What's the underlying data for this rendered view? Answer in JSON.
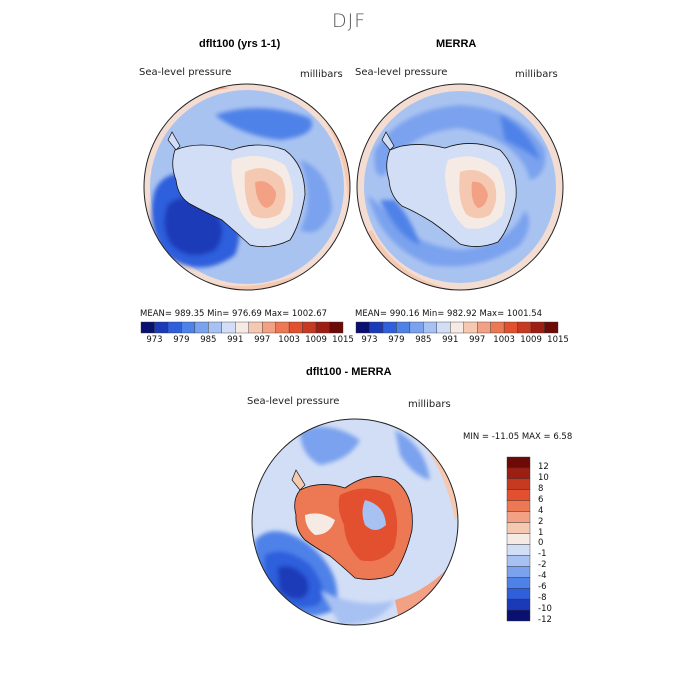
{
  "figure": {
    "season": "DJF",
    "units": "millibars",
    "variable": "Sea-level pressure"
  },
  "panels": [
    {
      "title": "dflt100 (yrs 1-1)",
      "variable": "Sea-level pressure",
      "units": "millibars",
      "stats": "MEAN= 989.35   Min= 976.69   Max= 1002.67"
    },
    {
      "title": "MERRA",
      "variable": "Sea-level pressure",
      "units": "millibars",
      "stats": "MEAN= 990.16   Min= 982.92   Max= 1001.54"
    },
    {
      "title": "dflt100 - MERRA",
      "variable": "Sea-level pressure",
      "units": "millibars",
      "stats": "MIN = -11.05 MAX =    6.58"
    }
  ],
  "colorbar_horizontal": {
    "tick_labels": [
      "973",
      "979",
      "985",
      "991",
      "997",
      "1003",
      "1009",
      "1015"
    ],
    "colors": [
      "#0a1070",
      "#1a3ab8",
      "#2f5fdc",
      "#4f82e8",
      "#7aa2ee",
      "#a7c1f2",
      "#d2def6",
      "#f6eae4",
      "#f5c8b2",
      "#f2a185",
      "#ec7854",
      "#e2502f",
      "#c63a22",
      "#9d1e12",
      "#6b0a06"
    ]
  },
  "colorbar_vertical": {
    "tick_labels": [
      "12",
      "10",
      "8",
      "6",
      "4",
      "2",
      "1",
      "0",
      "-1",
      "-2",
      "-4",
      "-6",
      "-8",
      "-10",
      "-12"
    ],
    "colors": [
      "#6b0a06",
      "#9d1e12",
      "#c63a22",
      "#e2502f",
      "#ec7854",
      "#f2a185",
      "#f5c8b2",
      "#f6eae4",
      "#d2def6",
      "#a7c1f2",
      "#7aa2ee",
      "#4f82e8",
      "#2f5fdc",
      "#1a3ab8",
      "#0a1070"
    ]
  }
}
